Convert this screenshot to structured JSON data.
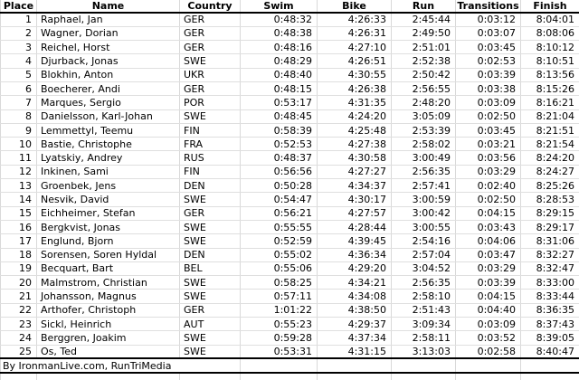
{
  "colors": {
    "background": "#ffffff",
    "text": "#000000",
    "gridline": "#d9d9d9",
    "heavy_rule": "#000000"
  },
  "table": {
    "columns": [
      {
        "label": "Place",
        "align": "right",
        "width": 40
      },
      {
        "label": "Name",
        "align": "left",
        "width": 158
      },
      {
        "label": "Country",
        "align": "left",
        "width": 67
      },
      {
        "label": "Swim",
        "align": "right",
        "width": 85
      },
      {
        "label": "Bike",
        "align": "right",
        "width": 82
      },
      {
        "label": "Run",
        "align": "right",
        "width": 71
      },
      {
        "label": "Transitions",
        "align": "right",
        "width": 72
      },
      {
        "label": "Finish",
        "align": "right",
        "width": 65
      }
    ],
    "rows": [
      [
        "1",
        "Raphael, Jan",
        "GER",
        "0:48:32",
        "4:26:33",
        "2:45:44",
        "0:03:12",
        "8:04:01"
      ],
      [
        "2",
        "Wagner, Dorian",
        "GER",
        "0:48:38",
        "4:26:31",
        "2:49:50",
        "0:03:07",
        "8:08:06"
      ],
      [
        "3",
        "Reichel, Horst",
        "GER",
        "0:48:16",
        "4:27:10",
        "2:51:01",
        "0:03:45",
        "8:10:12"
      ],
      [
        "4",
        "Djurback, Jonas",
        "SWE",
        "0:48:29",
        "4:26:51",
        "2:52:38",
        "0:02:53",
        "8:10:51"
      ],
      [
        "5",
        "Blokhin, Anton",
        "UKR",
        "0:48:40",
        "4:30:55",
        "2:50:42",
        "0:03:39",
        "8:13:56"
      ],
      [
        "6",
        "Boecherer, Andi",
        "GER",
        "0:48:15",
        "4:26:38",
        "2:56:55",
        "0:03:38",
        "8:15:26"
      ],
      [
        "7",
        "Marques, Sergio",
        "POR",
        "0:53:17",
        "4:31:35",
        "2:48:20",
        "0:03:09",
        "8:16:21"
      ],
      [
        "8",
        "Danielsson, Karl-Johan",
        "SWE",
        "0:48:45",
        "4:24:20",
        "3:05:09",
        "0:02:50",
        "8:21:04"
      ],
      [
        "9",
        "Lemmettyl, Teemu",
        "FIN",
        "0:58:39",
        "4:25:48",
        "2:53:39",
        "0:03:45",
        "8:21:51"
      ],
      [
        "10",
        "Bastie, Christophe",
        "FRA",
        "0:52:53",
        "4:27:38",
        "2:58:02",
        "0:03:21",
        "8:21:54"
      ],
      [
        "11",
        "Lyatskiy, Andrey",
        "RUS",
        "0:48:37",
        "4:30:58",
        "3:00:49",
        "0:03:56",
        "8:24:20"
      ],
      [
        "12",
        "Inkinen, Sami",
        "FIN",
        "0:56:56",
        "4:27:27",
        "2:56:35",
        "0:03:29",
        "8:24:27"
      ],
      [
        "13",
        "Groenbek, Jens",
        "DEN",
        "0:50:28",
        "4:34:37",
        "2:57:41",
        "0:02:40",
        "8:25:26"
      ],
      [
        "14",
        "Nesvik, David",
        "SWE",
        "0:54:47",
        "4:30:17",
        "3:00:59",
        "0:02:50",
        "8:28:53"
      ],
      [
        "15",
        "Eichheimer, Stefan",
        "GER",
        "0:56:21",
        "4:27:57",
        "3:00:42",
        "0:04:15",
        "8:29:15"
      ],
      [
        "16",
        "Bergkvist, Jonas",
        "SWE",
        "0:55:55",
        "4:28:44",
        "3:00:55",
        "0:03:43",
        "8:29:17"
      ],
      [
        "17",
        "Englund, Bjorn",
        "SWE",
        "0:52:59",
        "4:39:45",
        "2:54:16",
        "0:04:06",
        "8:31:06"
      ],
      [
        "18",
        "Sorensen, Soren Hyldal",
        "DEN",
        "0:55:02",
        "4:36:34",
        "2:57:04",
        "0:03:47",
        "8:32:27"
      ],
      [
        "19",
        "Becquart, Bart",
        "BEL",
        "0:55:06",
        "4:29:20",
        "3:04:52",
        "0:03:29",
        "8:32:47"
      ],
      [
        "20",
        "Malmstrom, Christian",
        "SWE",
        "0:58:25",
        "4:34:21",
        "2:56:35",
        "0:03:39",
        "8:33:00"
      ],
      [
        "21",
        "Johansson, Magnus",
        "SWE",
        "0:57:11",
        "4:34:08",
        "2:58:10",
        "0:04:15",
        "8:33:44"
      ],
      [
        "22",
        "Arthofer, Christoph",
        "GER",
        "1:01:22",
        "4:38:50",
        "2:51:43",
        "0:04:40",
        "8:36:35"
      ],
      [
        "23",
        "Sickl, Heinrich",
        "AUT",
        "0:55:23",
        "4:29:37",
        "3:09:34",
        "0:03:09",
        "8:37:43"
      ],
      [
        "24",
        "Berggren, Joakim",
        "SWE",
        "0:59:28",
        "4:37:34",
        "2:58:11",
        "0:03:52",
        "8:39:05"
      ],
      [
        "25",
        "Os, Ted",
        "SWE",
        "0:53:31",
        "4:31:15",
        "3:13:03",
        "0:02:58",
        "8:40:47"
      ]
    ],
    "credit": "By IronmanLive.com, RunTriMedia"
  }
}
